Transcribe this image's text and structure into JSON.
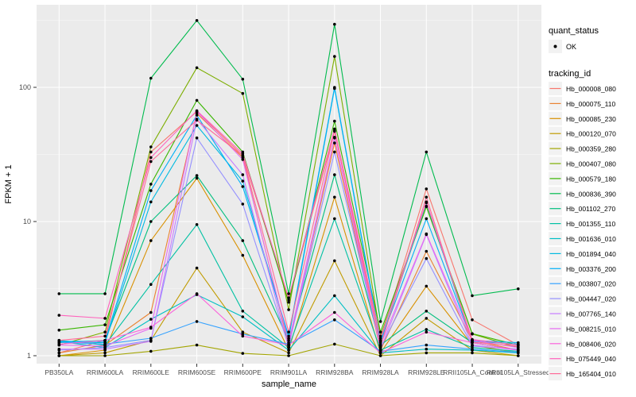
{
  "chart_data": {
    "type": "line",
    "title": "",
    "xlabel": "sample_name",
    "ylabel": "FPKM + 1",
    "y_scale": "log10",
    "y_ticks": [
      1,
      10,
      100
    ],
    "y_tick_labels": [
      "1",
      "10",
      "100"
    ],
    "ylim_log": [
      -0.07,
      2.62
    ],
    "grid": "on",
    "legend_position": "right",
    "panel_bg": "#EBEBEB",
    "grid_color": "#FFFFFF",
    "point_color": "#000000",
    "tick_text_color": "#4D4D4D",
    "axis_title_color": "#000000",
    "legend_key_bg": "#F2F2F2",
    "categories": [
      "PB350LA",
      "RRIM600LA",
      "RRIM600LE",
      "RRIM600SE",
      "RRIM600PE",
      "RRIM901LA",
      "RRIM928BA",
      "RRIM928LA",
      "RRIM928LE",
      "RRII105LA_Control",
      "RRII105LA_Stressed"
    ],
    "legend": {
      "quant_status_title": "quant_status",
      "quant_status_items": [
        "OK"
      ],
      "tracking_title": "tracking_id"
    },
    "series": [
      {
        "name": "Hb_000008_080",
        "color": "#F8766D",
        "values": [
          1.05,
          1.3,
          33,
          66,
          31,
          2.6,
          47,
          1.3,
          17.5,
          1.85,
          1.2
        ]
      },
      {
        "name": "Hb_000075_110",
        "color": "#EA8331",
        "values": [
          1.05,
          1.2,
          2.1,
          64,
          30,
          1.2,
          38.5,
          1.1,
          6.0,
          1.3,
          1.1
        ]
      },
      {
        "name": "Hb_000085_230",
        "color": "#D89000",
        "values": [
          1.0,
          1.1,
          7.2,
          21,
          5.6,
          1.1,
          15.2,
          1.05,
          3.3,
          1.2,
          1.05
        ]
      },
      {
        "name": "Hb_000120_070",
        "color": "#C09B00",
        "values": [
          1.0,
          1.05,
          1.3,
          4.5,
          1.5,
          1.05,
          5.1,
          1.0,
          1.9,
          1.1,
          1.0
        ]
      },
      {
        "name": "Hb_000359_280",
        "color": "#A3A500",
        "values": [
          1.0,
          1.0,
          1.08,
          1.2,
          1.04,
          1.0,
          1.22,
          1.0,
          1.05,
          1.05,
          1.0
        ]
      },
      {
        "name": "Hb_000407_080",
        "color": "#7CAE00",
        "values": [
          1.2,
          1.5,
          36,
          140,
          90,
          2.2,
          170,
          1.4,
          13,
          1.45,
          1.15
        ]
      },
      {
        "name": "Hb_000579_180",
        "color": "#39B600",
        "values": [
          1.55,
          1.7,
          19,
          80,
          33,
          2.5,
          56,
          1.5,
          12.9,
          1.46,
          1.2
        ]
      },
      {
        "name": "Hb_000836_390",
        "color": "#00BB4E",
        "values": [
          2.9,
          2.9,
          117,
          315,
          115,
          2.9,
          295,
          1.8,
          33,
          2.8,
          3.15
        ]
      },
      {
        "name": "Hb_001102_270",
        "color": "#00BF7D",
        "values": [
          1.25,
          1.3,
          10,
          22,
          7.2,
          1.3,
          22.3,
          1.2,
          2.15,
          1.25,
          1.1
        ]
      },
      {
        "name": "Hb_001355_110",
        "color": "#00C1A3",
        "values": [
          1.3,
          1.2,
          3.4,
          9.5,
          2.15,
          1.15,
          10.5,
          1.1,
          1.57,
          1.15,
          1.08
        ]
      },
      {
        "name": "Hb_001636_010",
        "color": "#00BFC4",
        "values": [
          1.28,
          1.15,
          1.87,
          2.85,
          1.95,
          1.1,
          2.8,
          1.05,
          1.12,
          1.1,
          1.05
        ]
      },
      {
        "name": "Hb_001894_040",
        "color": "#00BAE0",
        "values": [
          1.27,
          1.25,
          14,
          52,
          20,
          1.35,
          98,
          1.25,
          13.8,
          1.28,
          1.22
        ]
      },
      {
        "name": "Hb_003376_200",
        "color": "#00B0F6",
        "values": [
          1.28,
          1.28,
          17,
          62,
          18.2,
          1.4,
          100,
          1.28,
          10.5,
          1.3,
          1.25
        ]
      },
      {
        "name": "Hb_003807_020",
        "color": "#35A2FF",
        "values": [
          1.26,
          1.22,
          1.35,
          1.8,
          1.45,
          1.22,
          1.85,
          1.08,
          1.2,
          1.12,
          1.06
        ]
      },
      {
        "name": "Hb_004447_020",
        "color": "#9590FF",
        "values": [
          1.1,
          1.15,
          1.3,
          42,
          13.5,
          1.18,
          33,
          1.15,
          5.3,
          1.18,
          1.12
        ]
      },
      {
        "name": "Hb_007765_140",
        "color": "#C77CFF",
        "values": [
          1.12,
          1.12,
          1.28,
          58,
          22.3,
          1.15,
          42.5,
          1.12,
          8.0,
          1.2,
          1.1
        ]
      },
      {
        "name": "Hb_008215_010",
        "color": "#E76BF3",
        "values": [
          1.2,
          1.18,
          1.6,
          66,
          29,
          1.25,
          42,
          1.2,
          8.1,
          1.3,
          1.15
        ]
      },
      {
        "name": "Hb_008406_020",
        "color": "#FA62DB",
        "values": [
          1.22,
          1.3,
          1.63,
          2.9,
          1.4,
          1.2,
          2.1,
          1.05,
          1.5,
          1.25,
          1.1
        ]
      },
      {
        "name": "Hb_075449_040",
        "color": "#FF62BC",
        "values": [
          2.0,
          1.9,
          30,
          67,
          32,
          2.7,
          49,
          1.35,
          14,
          1.32,
          1.2
        ]
      },
      {
        "name": "Hb_165404_010",
        "color": "#FF6A98",
        "values": [
          1.3,
          1.4,
          28,
          57,
          31,
          1.5,
          47.5,
          1.18,
          15.2,
          1.26,
          1.18
        ]
      }
    ]
  }
}
